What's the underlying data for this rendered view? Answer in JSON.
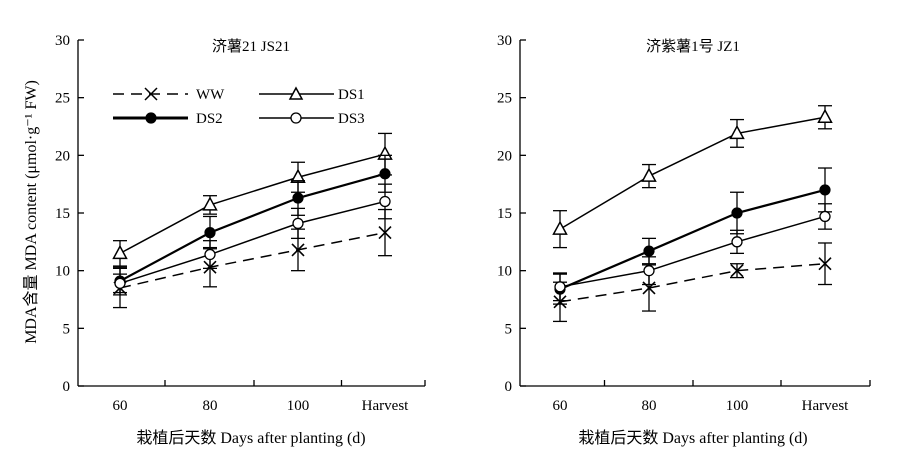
{
  "ylabel": "MDA含量 MDA content (μmol·g⁻¹ FW)",
  "xlabel": "栽植后天数 Days after planting (d)",
  "categories": [
    "60",
    "80",
    "100",
    "Harvest"
  ],
  "legend": [
    {
      "name": "WW",
      "style": "dashed",
      "marker": "cross"
    },
    {
      "name": "DS1",
      "style": "solid",
      "marker": "triangle-open"
    },
    {
      "name": "DS2",
      "style": "solid-bold",
      "marker": "circle-filled"
    },
    {
      "name": "DS3",
      "style": "solid",
      "marker": "circle-open"
    }
  ],
  "colors": {
    "ink": "#000000",
    "background": "#ffffff"
  },
  "chart_data": [
    {
      "type": "line",
      "title": "济薯21 JS21",
      "xlabel": "栽植后天数 Days after planting (d)",
      "ylabel": "MDA含量 MDA content (μmol·g⁻¹ FW)",
      "categories": [
        "60",
        "80",
        "100",
        "Harvest"
      ],
      "ylim": [
        0,
        30
      ],
      "yticks": [
        0,
        5,
        10,
        15,
        20,
        25,
        30
      ],
      "grid": false,
      "legend_position": "top-left",
      "series": [
        {
          "name": "WW",
          "marker": "cross",
          "dashed": true,
          "values": [
            8.5,
            10.3,
            11.8,
            13.3
          ],
          "errors": [
            1.7,
            1.7,
            1.8,
            2.0
          ]
        },
        {
          "name": "DS1",
          "marker": "triangle-open",
          "dashed": false,
          "values": [
            11.5,
            15.7,
            18.1,
            20.1
          ],
          "errors": [
            1.1,
            0.8,
            1.3,
            1.8
          ]
        },
        {
          "name": "DS2",
          "marker": "circle-filled",
          "dashed": false,
          "values": [
            9.1,
            13.3,
            16.3,
            18.4
          ],
          "errors": [
            1.2,
            1.4,
            1.5,
            1.6
          ]
        },
        {
          "name": "DS3",
          "marker": "circle-open",
          "dashed": false,
          "values": [
            8.9,
            11.4,
            14.1,
            16.0
          ],
          "errors": [
            0.8,
            1.2,
            1.3,
            1.5
          ]
        }
      ]
    },
    {
      "type": "line",
      "title": "济紫薯1号 JZ1",
      "xlabel": "栽植后天数 Days after planting (d)",
      "ylabel": "",
      "categories": [
        "60",
        "80",
        "100",
        "Harvest"
      ],
      "ylim": [
        0,
        30
      ],
      "yticks": [
        0,
        5,
        10,
        15,
        20,
        25,
        30
      ],
      "grid": false,
      "legend_position": "none",
      "series": [
        {
          "name": "WW",
          "marker": "cross",
          "dashed": true,
          "values": [
            7.3,
            8.5,
            10.0,
            10.6
          ],
          "errors": [
            1.7,
            2.0,
            0.6,
            1.8
          ]
        },
        {
          "name": "DS1",
          "marker": "triangle-open",
          "dashed": false,
          "values": [
            13.6,
            18.2,
            21.9,
            23.3
          ],
          "errors": [
            1.6,
            1.0,
            1.2,
            1.0
          ]
        },
        {
          "name": "DS2",
          "marker": "circle-filled",
          "dashed": false,
          "values": [
            8.4,
            11.7,
            15.0,
            17.0
          ],
          "errors": [
            1.3,
            1.1,
            1.8,
            1.9
          ]
        },
        {
          "name": "DS3",
          "marker": "circle-open",
          "dashed": false,
          "values": [
            8.6,
            10.0,
            12.5,
            14.7
          ],
          "errors": [
            1.2,
            1.2,
            1.0,
            1.1
          ]
        }
      ]
    }
  ]
}
